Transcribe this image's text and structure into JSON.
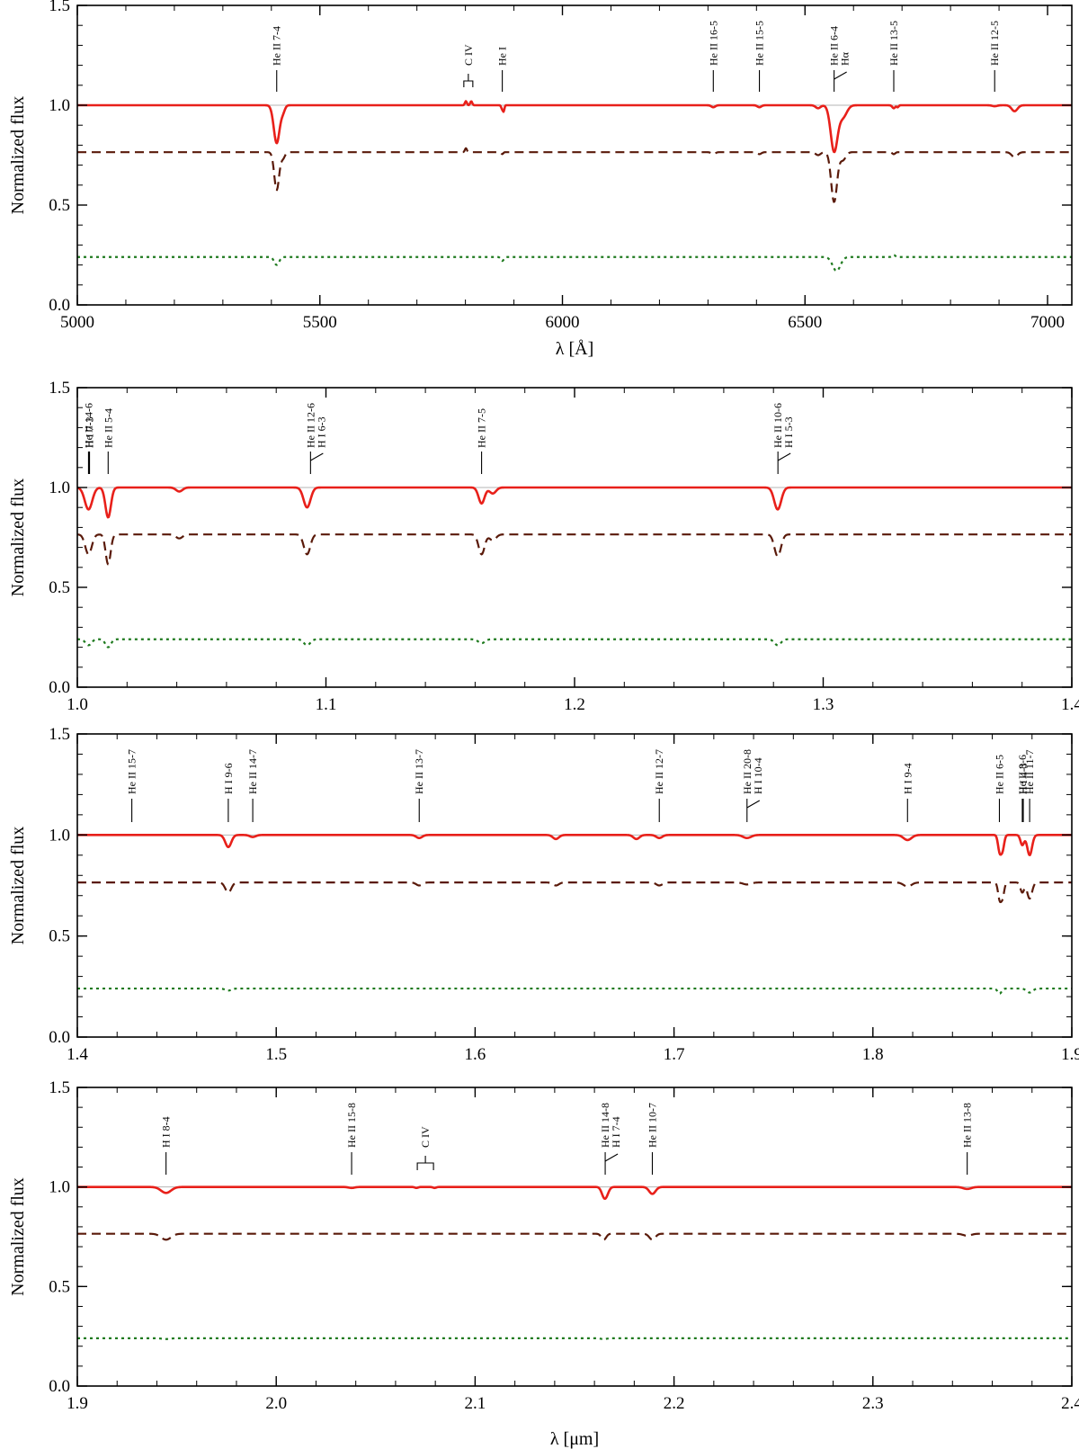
{
  "chart_data": [
    {
      "type": "line",
      "xlabel": "λ [Å]",
      "ylabel": "Normalized flux",
      "xlim": [
        5000,
        7050
      ],
      "ylim": [
        0.0,
        1.5
      ],
      "xticks": [
        5000,
        5500,
        6000,
        6500,
        7000
      ],
      "xtick_labels": [
        "5000",
        "5500",
        "6000",
        "6500",
        "7000"
      ],
      "yticks": [
        0.0,
        0.5,
        1.0,
        1.5
      ],
      "ytick_labels": [
        "0.0",
        "0.5",
        "1.0",
        "1.5"
      ],
      "series": [
        {
          "style": "solid",
          "color": "#e8201a",
          "continuum": 1.0,
          "lines": [
            [
              5411,
              0.19,
              6
            ],
            [
              5424,
              0.03,
              4
            ],
            [
              5801,
              -0.02,
              2
            ],
            [
              5812,
              -0.02,
              2
            ],
            [
              5876,
              0.02,
              2
            ],
            [
              5879,
              0.025,
              1.5
            ],
            [
              6311,
              0.01,
              4
            ],
            [
              6406,
              0.01,
              4
            ],
            [
              6527,
              0.015,
              5
            ],
            [
              6560,
              0.23,
              7
            ],
            [
              6578,
              0.06,
              8
            ],
            [
              6683,
              0.015,
              3
            ],
            [
              6691,
              0.01,
              2
            ],
            [
              6891,
              0.005,
              5
            ],
            [
              6932,
              0.03,
              6
            ]
          ]
        },
        {
          "style": "dashed",
          "color": "#5a1a0a",
          "continuum": 0.765,
          "lines": [
            [
              5411,
              0.19,
              5
            ],
            [
              5424,
              0.03,
              4
            ],
            [
              5801,
              -0.02,
              2
            ],
            [
              5876,
              0.01,
              2
            ],
            [
              6311,
              0.01,
              4
            ],
            [
              6406,
              0.01,
              4
            ],
            [
              6527,
              0.015,
              5
            ],
            [
              6560,
              0.25,
              6
            ],
            [
              6578,
              0.04,
              6
            ],
            [
              6683,
              0.01,
              3
            ],
            [
              6932,
              0.025,
              6
            ]
          ]
        },
        {
          "style": "dotted",
          "color": "#1e7a1e",
          "continuum": 0.24,
          "lines": [
            [
              5411,
              0.04,
              5
            ],
            [
              5876,
              0.02,
              3
            ],
            [
              6565,
              0.07,
              8
            ],
            [
              6683,
              -0.01,
              3
            ]
          ]
        }
      ],
      "annotations": [
        {
          "text": "He II 7-4",
          "x": 5411
        },
        {
          "text": "C IV",
          "x": 5806
        },
        {
          "text": "He I",
          "x": 5876
        },
        {
          "text": "He II 16-5",
          "x": 6311
        },
        {
          "text": "He II 15-5",
          "x": 6406
        },
        {
          "text": "He II 6-4 / Hα",
          "x": 6560
        },
        {
          "text": "He II 13-5",
          "x": 6683
        },
        {
          "text": "He II 12-5",
          "x": 6891
        }
      ]
    },
    {
      "type": "line",
      "xlabel": "",
      "ylabel": "Normalized flux",
      "xlim": [
        1.0,
        1.4
      ],
      "ylim": [
        0.0,
        1.5
      ],
      "xticks": [
        1.0,
        1.1,
        1.2,
        1.3,
        1.4
      ],
      "xtick_labels": [
        "1.0",
        "1.1",
        "1.2",
        "1.3",
        "1.4"
      ],
      "yticks": [
        0.0,
        0.5,
        1.0,
        1.5
      ],
      "ytick_labels": [
        "0.0",
        "0.5",
        "1.0",
        "1.5"
      ],
      "series": [
        {
          "style": "solid",
          "color": "#e8201a",
          "continuum": 1.0,
          "lines": [
            [
              1.0045,
              0.11,
              0.0015
            ],
            [
              1.0124,
              0.15,
              0.0011
            ],
            [
              1.041,
              0.02,
              0.0013
            ],
            [
              1.0924,
              0.1,
              0.0014
            ],
            [
              1.1626,
              0.08,
              0.0012
            ],
            [
              1.1671,
              0.03,
              0.0013
            ],
            [
              1.2817,
              0.11,
              0.0014
            ]
          ]
        },
        {
          "style": "dashed",
          "color": "#5a1a0a",
          "continuum": 0.765,
          "lines": [
            [
              1.0045,
              0.1,
              0.0013
            ],
            [
              1.0124,
              0.15,
              0.001
            ],
            [
              1.041,
              0.02,
              0.0013
            ],
            [
              1.0924,
              0.1,
              0.0013
            ],
            [
              1.1626,
              0.1,
              0.0012
            ],
            [
              1.1671,
              0.03,
              0.0013
            ],
            [
              1.2817,
              0.11,
              0.0013
            ]
          ]
        },
        {
          "style": "dotted",
          "color": "#1e7a1e",
          "continuum": 0.24,
          "lines": [
            [
              1.0045,
              0.03,
              0.0012
            ],
            [
              1.0124,
              0.04,
              0.0011
            ],
            [
              1.0924,
              0.03,
              0.0013
            ],
            [
              1.1626,
              0.02,
              0.0013
            ],
            [
              1.2817,
              0.03,
              0.0013
            ]
          ]
        }
      ],
      "annotations": [
        {
          "text": "He II 14-6",
          "x": 1.0045
        },
        {
          "text": "H I 7-3",
          "x": 1.0049
        },
        {
          "text": "He II 5-4",
          "x": 1.0124
        },
        {
          "text": "He II 12-6 / H I 6-3",
          "x": 1.0938
        },
        {
          "text": "He II 7-5",
          "x": 1.1626
        },
        {
          "text": "He II 10-6 / H I 5-3",
          "x": 1.2818
        }
      ]
    },
    {
      "type": "line",
      "xlabel": "",
      "ylabel": "Normalized flux",
      "xlim": [
        1.4,
        1.9
      ],
      "ylim": [
        0.0,
        1.5
      ],
      "xticks": [
        1.4,
        1.5,
        1.6,
        1.7,
        1.8,
        1.9
      ],
      "xtick_labels": [
        "1.4",
        "1.5",
        "1.6",
        "1.7",
        "1.8",
        "1.9"
      ],
      "yticks": [
        0.0,
        0.5,
        1.0,
        1.5
      ],
      "ytick_labels": [
        "0.0",
        "0.5",
        "1.0",
        "1.5"
      ],
      "series": [
        {
          "style": "solid",
          "color": "#e8201a",
          "continuum": 1.0,
          "lines": [
            [
              1.4759,
              0.06,
              0.0015
            ],
            [
              1.4882,
              0.01,
              0.0015
            ],
            [
              1.5719,
              0.015,
              0.0015
            ],
            [
              1.6406,
              0.02,
              0.0015
            ],
            [
              1.6811,
              0.02,
              0.0015
            ],
            [
              1.6926,
              0.015,
              0.0015
            ],
            [
              1.7367,
              0.015,
              0.002
            ],
            [
              1.8174,
              0.025,
              0.002
            ],
            [
              1.8637,
              0.08,
              0.0008
            ],
            [
              1.8652,
              0.07,
              0.0008
            ],
            [
              1.8751,
              0.05,
              0.0009
            ],
            [
              1.8788,
              0.1,
              0.0012
            ]
          ]
        },
        {
          "style": "dashed",
          "color": "#5a1a0a",
          "continuum": 0.765,
          "lines": [
            [
              1.4759,
              0.05,
              0.0015
            ],
            [
              1.5719,
              0.015,
              0.0015
            ],
            [
              1.6406,
              0.015,
              0.0015
            ],
            [
              1.6926,
              0.015,
              0.0015
            ],
            [
              1.7367,
              0.01,
              0.002
            ],
            [
              1.8174,
              0.02,
              0.002
            ],
            [
              1.8637,
              0.08,
              0.0008
            ],
            [
              1.8652,
              0.07,
              0.0008
            ],
            [
              1.8751,
              0.05,
              0.0009
            ],
            [
              1.8788,
              0.08,
              0.0012
            ]
          ]
        },
        {
          "style": "dotted",
          "color": "#1e7a1e",
          "continuum": 0.24,
          "lines": [
            [
              1.4759,
              0.01,
              0.0015
            ],
            [
              1.8637,
              0.025,
              0.001
            ],
            [
              1.8788,
              0.02,
              0.0015
            ]
          ]
        }
      ],
      "annotations": [
        {
          "text": "He II 15-7",
          "x": 1.4274
        },
        {
          "text": "H I 9-6",
          "x": 1.4759
        },
        {
          "text": "He II 14-7",
          "x": 1.4882
        },
        {
          "text": "He II 13-7",
          "x": 1.5719
        },
        {
          "text": "He II 12-7",
          "x": 1.6926
        },
        {
          "text": "He II 20-8 / H I 10-4",
          "x": 1.7367
        },
        {
          "text": "H I 9-4",
          "x": 1.8174
        },
        {
          "text": "He II 6-5",
          "x": 1.8636
        },
        {
          "text": "He II 8-6",
          "x": 1.8751
        },
        {
          "text": "H I 4-3",
          "x": 1.8756
        },
        {
          "text": "He II 11-7",
          "x": 1.8788
        }
      ]
    },
    {
      "type": "line",
      "xlabel": "λ [μm]",
      "ylabel": "Normalized flux",
      "xlim": [
        1.9,
        2.4
      ],
      "ylim": [
        0.0,
        1.5
      ],
      "xticks": [
        1.9,
        2.0,
        2.1,
        2.2,
        2.3,
        2.4
      ],
      "xtick_labels": [
        "1.9",
        "2.0",
        "2.1",
        "2.2",
        "2.3",
        "2.4"
      ],
      "yticks": [
        0.0,
        0.5,
        1.0,
        1.5
      ],
      "ytick_labels": [
        "0.0",
        "0.5",
        "1.0",
        "1.5"
      ],
      "series": [
        {
          "style": "solid",
          "color": "#e8201a",
          "continuum": 1.0,
          "lines": [
            [
              1.9446,
              0.03,
              0.0025
            ],
            [
              2.0379,
              0.005,
              0.0015
            ],
            [
              2.0705,
              0.005,
              0.0008
            ],
            [
              2.0796,
              0.005,
              0.0008
            ],
            [
              2.1647,
              0.04,
              0.0012
            ],
            [
              2.1661,
              0.03,
              0.0012
            ],
            [
              2.1891,
              0.035,
              0.0016
            ],
            [
              2.3474,
              0.01,
              0.002
            ]
          ]
        },
        {
          "style": "dashed",
          "color": "#5a1a0a",
          "continuum": 0.765,
          "lines": [
            [
              1.9446,
              0.03,
              0.0025
            ],
            [
              2.1647,
              0.03,
              0.0012
            ],
            [
              2.1891,
              0.03,
              0.0015
            ],
            [
              2.3474,
              0.01,
              0.002
            ]
          ]
        },
        {
          "style": "dotted",
          "color": "#1e7a1e",
          "continuum": 0.24,
          "lines": [
            [
              1.9446,
              0.004,
              0.002
            ],
            [
              2.1647,
              0.004,
              0.0015
            ]
          ]
        }
      ],
      "annotations": [
        {
          "text": "H I 8-4",
          "x": 1.9446
        },
        {
          "text": "He II 15-8",
          "x": 2.0379
        },
        {
          "text": "C IV",
          "x": 2.075
        },
        {
          "text": "He II 14-8 / H I 7-4",
          "x": 2.1654
        },
        {
          "text": "He II 10-7",
          "x": 2.1891
        },
        {
          "text": "He II 13-8",
          "x": 2.3474
        }
      ]
    }
  ]
}
